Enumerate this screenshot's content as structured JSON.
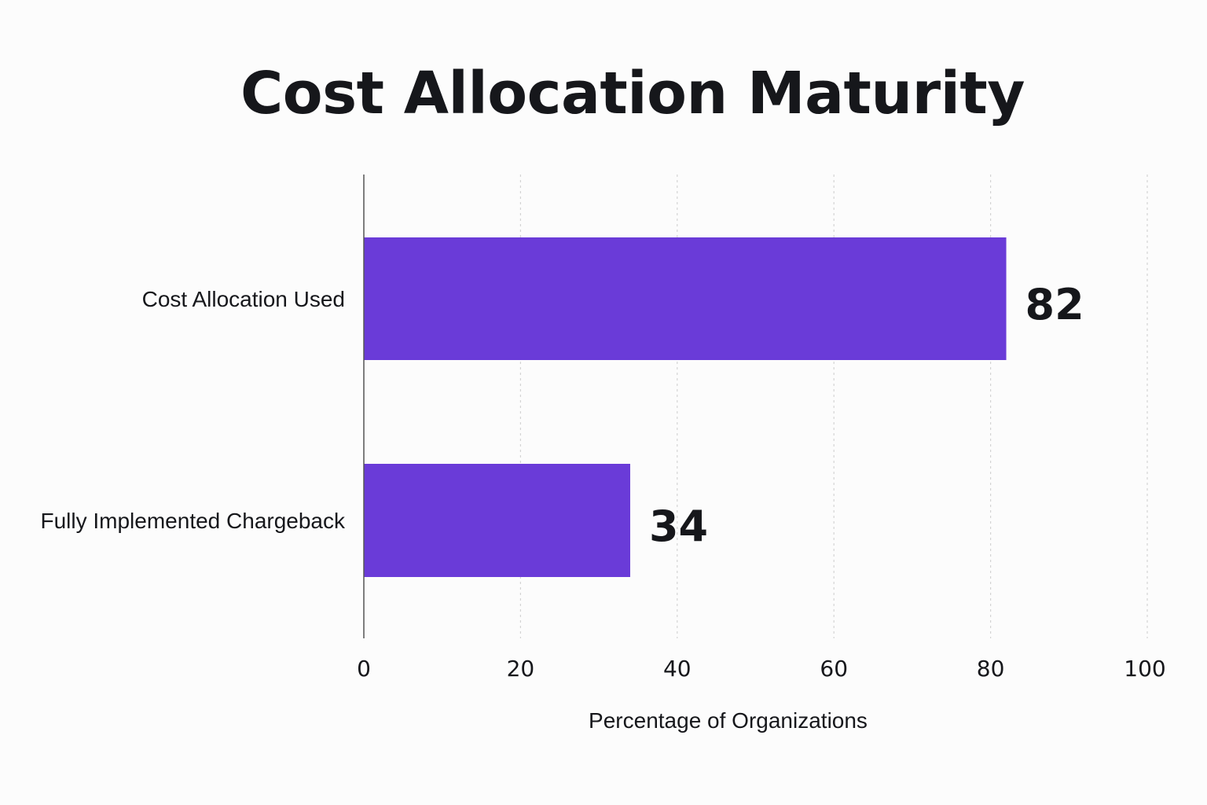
{
  "chart_data": {
    "type": "bar",
    "orientation": "horizontal",
    "title": "Cost Allocation Maturity",
    "categories": [
      "Cost Allocation Used",
      "Fully Implemented Chargeback"
    ],
    "values": [
      82,
      34
    ],
    "value_labels": [
      "82",
      "34"
    ],
    "xlabel": "Percentage of Organizations",
    "ylabel": "",
    "xlim": [
      0,
      100
    ],
    "x_ticks": [
      0,
      20,
      40,
      60,
      80,
      100
    ],
    "x_tick_labels": [
      "0",
      "20",
      "40",
      "60",
      "80",
      "100"
    ],
    "grid": "vertical dashed",
    "legend": "none",
    "bar_color": "#6a3bd8"
  }
}
